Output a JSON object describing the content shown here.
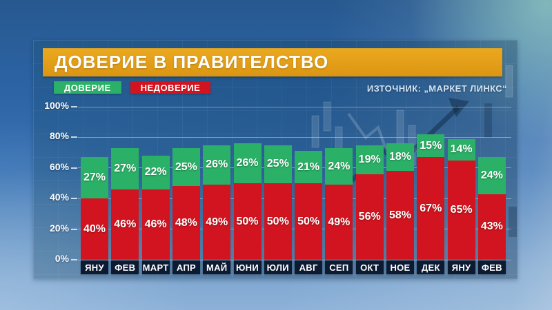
{
  "header": {
    "title": "ДОВЕРИЕ В ПРАВИТЕЛСТВО"
  },
  "legend": {
    "trust": "ДОВЕРИЕ",
    "distrust": "НЕДОВЕРИЕ"
  },
  "source": {
    "text": "ИЗТОЧНИК: „МАРКЕТ ЛИНКС“"
  },
  "colors": {
    "trust_green": "#2bb167",
    "distrust_red": "#d1141f",
    "title_band_top": "#eaa91f",
    "title_band_bottom": "#dc9512",
    "month_box": "#0d1b32",
    "grid_line": "rgba(255,255,255,0.38)"
  },
  "chart_data": {
    "type": "bar",
    "stacked": true,
    "title": "ДОВЕРИЕ В ПРАВИТЕЛСТВО",
    "xlabel": "",
    "ylabel": "",
    "ylim": [
      0,
      100
    ],
    "grid": true,
    "legend_position": "top-left",
    "value_suffix": "%",
    "ylabel_ticks": [
      "0%",
      "20%",
      "40%",
      "60%",
      "80%",
      "100%"
    ],
    "categories": [
      "ЯНУ",
      "ФЕВ",
      "МАРТ",
      "АПР",
      "МАЙ",
      "ЮНИ",
      "ЮЛИ",
      "АВГ",
      "СЕП",
      "ОКТ",
      "НОЕ",
      "ДЕК",
      "ЯНУ",
      "ФЕВ"
    ],
    "series": [
      {
        "name": "НЕДОВЕРИЕ",
        "color": "#d1141f",
        "values": [
          40,
          46,
          46,
          48,
          49,
          50,
          50,
          50,
          49,
          56,
          58,
          67,
          65,
          43
        ]
      },
      {
        "name": "ДОВЕРИЕ",
        "color": "#2bb167",
        "values": [
          27,
          27,
          22,
          25,
          26,
          26,
          25,
          21,
          24,
          19,
          18,
          15,
          14,
          24
        ]
      }
    ]
  }
}
